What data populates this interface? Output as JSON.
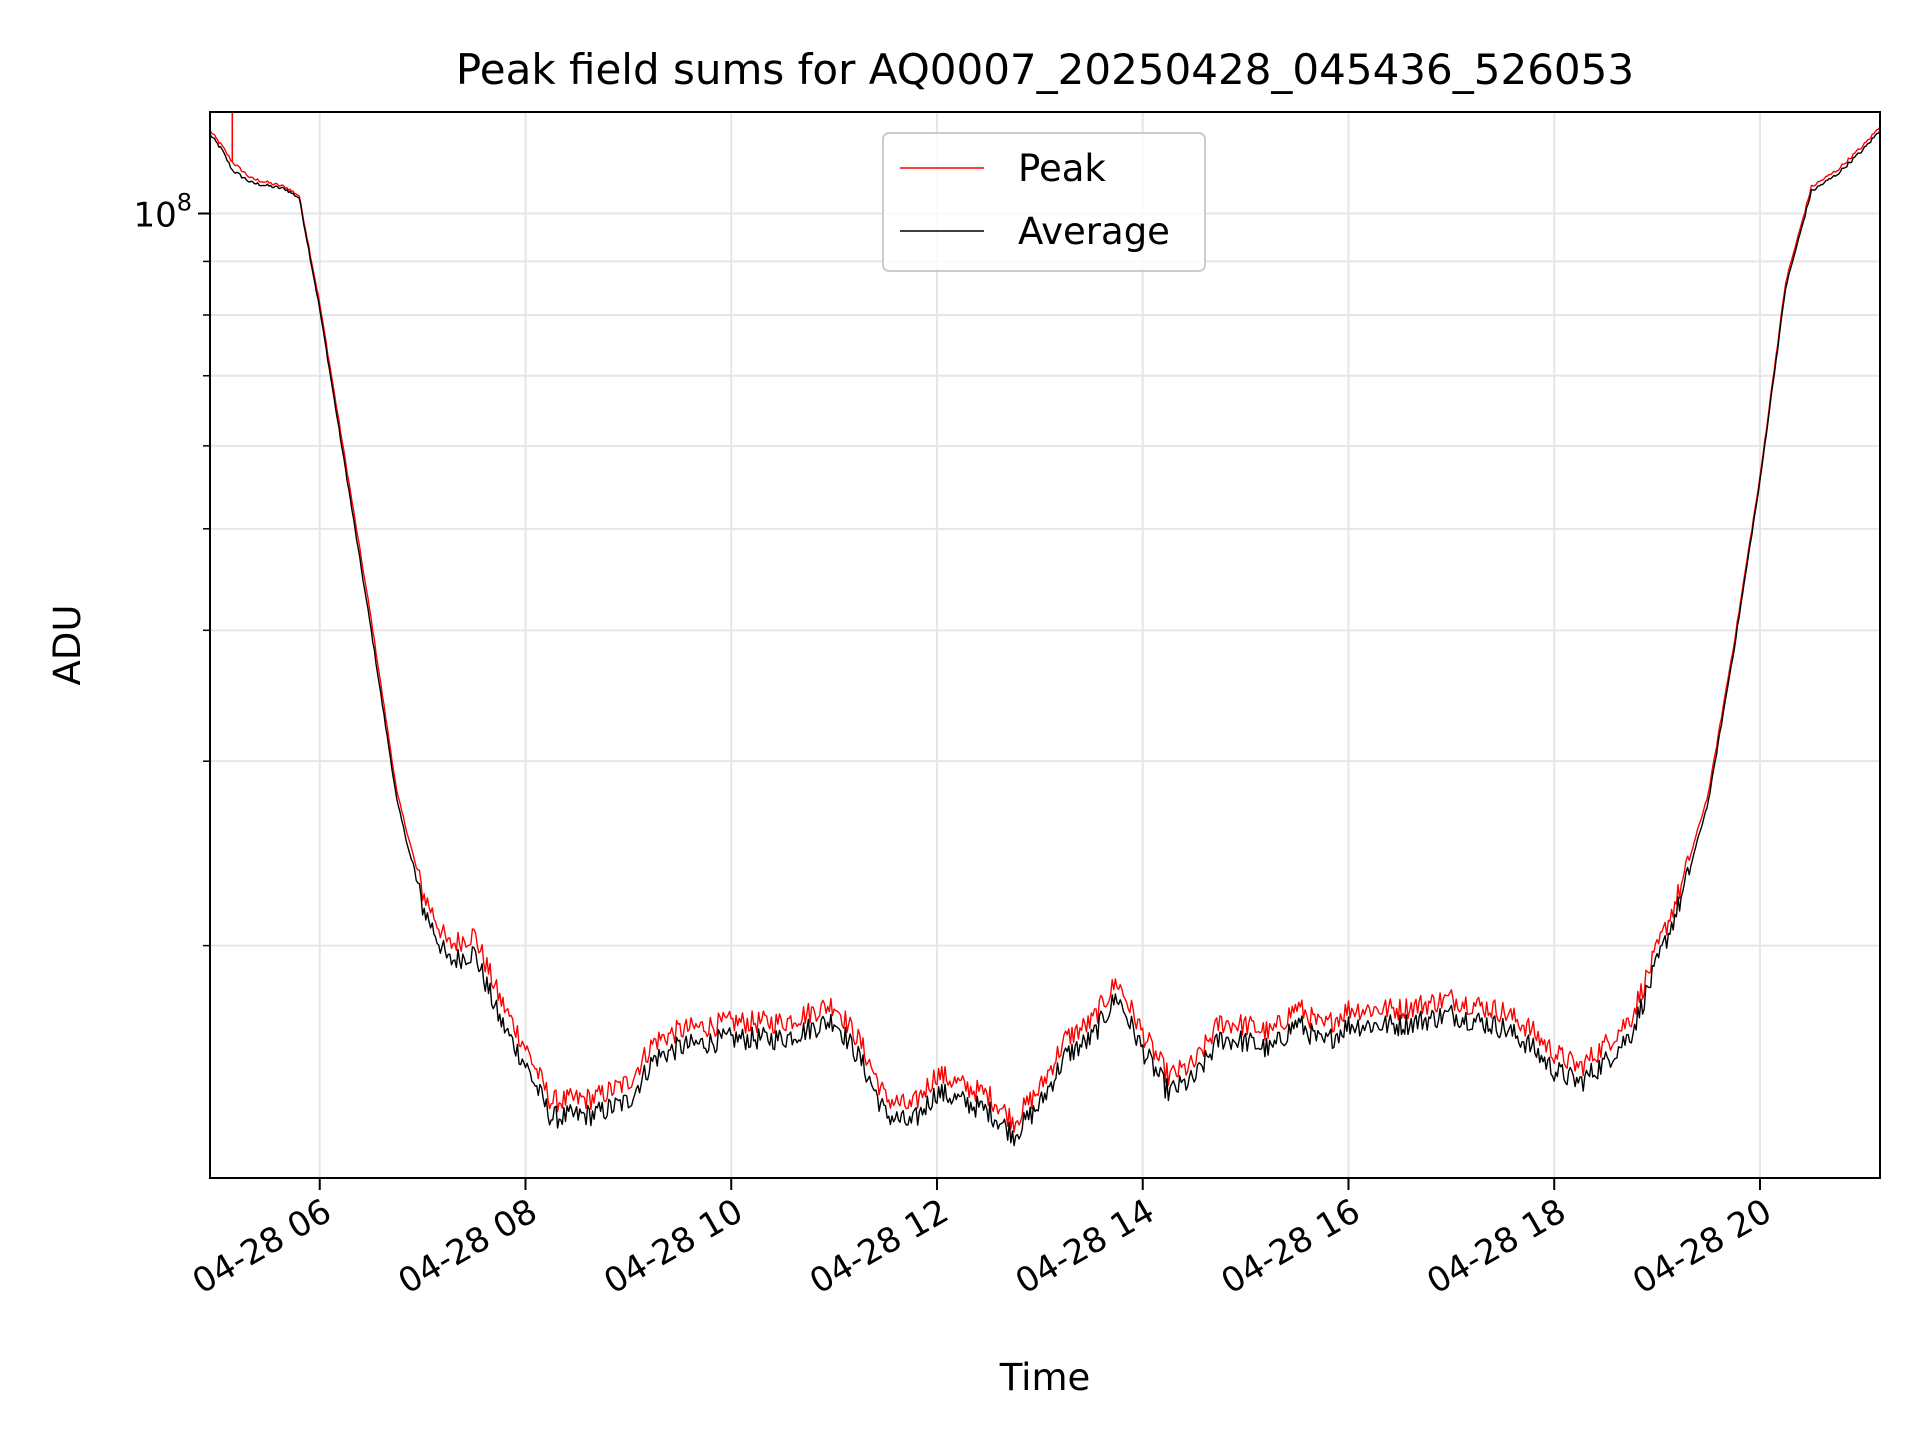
{
  "chart_data": {
    "type": "line",
    "title": "Peak field sums for AQ0007_20250428_045436_526053",
    "xlabel": "Time",
    "ylabel": "ADU",
    "y_scale": "log",
    "ylim": [
      12000000,
      125000000
    ],
    "xlim": [
      "2025-04-28 04:56",
      "2025-04-28 21:10"
    ],
    "grid": true,
    "legend": "upper center",
    "x_ticks": [
      {
        "t": "2025-04-28 06:00",
        "label": "04-28 06"
      },
      {
        "t": "2025-04-28 08:00",
        "label": "04-28 08"
      },
      {
        "t": "2025-04-28 10:00",
        "label": "04-28 10"
      },
      {
        "t": "2025-04-28 12:00",
        "label": "04-28 12"
      },
      {
        "t": "2025-04-28 14:00",
        "label": "04-28 14"
      },
      {
        "t": "2025-04-28 16:00",
        "label": "04-28 16"
      },
      {
        "t": "2025-04-28 18:00",
        "label": "04-28 18"
      },
      {
        "t": "2025-04-28 20:00",
        "label": "04-28 20"
      }
    ],
    "y_ticks": [
      {
        "value": 100000000,
        "label_base": "10",
        "label_exp": "8"
      }
    ],
    "series": [
      {
        "name": "Peak",
        "color": "#ff0000",
        "values": [
          {
            "t": "2025-04-28 04:56",
            "y": 120000000
          },
          {
            "t": "2025-04-28 05:03",
            "y": 116000000
          },
          {
            "t": "2025-04-28 05:09",
            "y": 112000000
          },
          {
            "t": "2025-04-28 05:20",
            "y": 108000000
          },
          {
            "t": "2025-04-28 05:40",
            "y": 106000000
          },
          {
            "t": "2025-04-28 05:48",
            "y": 104000000
          },
          {
            "t": "2025-04-28 06:00",
            "y": 82000000
          },
          {
            "t": "2025-04-28 06:15",
            "y": 58000000
          },
          {
            "t": "2025-04-28 06:30",
            "y": 41000000
          },
          {
            "t": "2025-04-28 06:45",
            "y": 28000000
          },
          {
            "t": "2025-04-28 07:00",
            "y": 22500000
          },
          {
            "t": "2025-04-28 07:15",
            "y": 20000000
          },
          {
            "t": "2025-04-28 07:30",
            "y": 20500000
          },
          {
            "t": "2025-04-28 07:45",
            "y": 17800000
          },
          {
            "t": "2025-04-28 08:00",
            "y": 16000000
          },
          {
            "t": "2025-04-28 08:15",
            "y": 14200000
          },
          {
            "t": "2025-04-28 08:40",
            "y": 14300000
          },
          {
            "t": "2025-04-28 09:00",
            "y": 14800000
          },
          {
            "t": "2025-04-28 09:15",
            "y": 16200000
          },
          {
            "t": "2025-04-28 09:30",
            "y": 16600000
          },
          {
            "t": "2025-04-28 10:00",
            "y": 16900000
          },
          {
            "t": "2025-04-28 10:30",
            "y": 16900000
          },
          {
            "t": "2025-04-28 11:00",
            "y": 17600000
          },
          {
            "t": "2025-04-28 11:15",
            "y": 16200000
          },
          {
            "t": "2025-04-28 11:30",
            "y": 14300000
          },
          {
            "t": "2025-04-28 11:45",
            "y": 14000000
          },
          {
            "t": "2025-04-28 12:00",
            "y": 15100000
          },
          {
            "t": "2025-04-28 12:15",
            "y": 14700000
          },
          {
            "t": "2025-04-28 12:30",
            "y": 14400000
          },
          {
            "t": "2025-04-28 12:45",
            "y": 13600000
          },
          {
            "t": "2025-04-28 13:00",
            "y": 14600000
          },
          {
            "t": "2025-04-28 13:15",
            "y": 16300000
          },
          {
            "t": "2025-04-28 13:30",
            "y": 16900000
          },
          {
            "t": "2025-04-28 13:45",
            "y": 18500000
          },
          {
            "t": "2025-04-28 14:00",
            "y": 16500000
          },
          {
            "t": "2025-04-28 14:15",
            "y": 15000000
          },
          {
            "t": "2025-04-28 14:30",
            "y": 15400000
          },
          {
            "t": "2025-04-28 14:45",
            "y": 16900000
          },
          {
            "t": "2025-04-28 15:00",
            "y": 16800000
          },
          {
            "t": "2025-04-28 15:15",
            "y": 16500000
          },
          {
            "t": "2025-04-28 15:30",
            "y": 17500000
          },
          {
            "t": "2025-04-28 15:45",
            "y": 16700000
          },
          {
            "t": "2025-04-28 16:00",
            "y": 17400000
          },
          {
            "t": "2025-04-28 16:30",
            "y": 17400000
          },
          {
            "t": "2025-04-28 17:00",
            "y": 17800000
          },
          {
            "t": "2025-04-28 17:30",
            "y": 17300000
          },
          {
            "t": "2025-04-28 17:45",
            "y": 16700000
          },
          {
            "t": "2025-04-28 18:00",
            "y": 15800000
          },
          {
            "t": "2025-04-28 18:15",
            "y": 15300000
          },
          {
            "t": "2025-04-28 18:30",
            "y": 16100000
          },
          {
            "t": "2025-04-28 18:45",
            "y": 17100000
          },
          {
            "t": "2025-04-28 19:00",
            "y": 19800000
          },
          {
            "t": "2025-04-28 19:15",
            "y": 23000000
          },
          {
            "t": "2025-04-28 19:30",
            "y": 28000000
          },
          {
            "t": "2025-04-28 19:45",
            "y": 39000000
          },
          {
            "t": "2025-04-28 20:00",
            "y": 56000000
          },
          {
            "t": "2025-04-28 20:15",
            "y": 86000000
          },
          {
            "t": "2025-04-28 20:30",
            "y": 106000000
          },
          {
            "t": "2025-04-28 20:45",
            "y": 110000000
          },
          {
            "t": "2025-04-28 21:00",
            "y": 116000000
          },
          {
            "t": "2025-04-28 21:10",
            "y": 121000000
          }
        ]
      },
      {
        "name": "Average",
        "color": "#000000",
        "values": [
          {
            "t": "2025-04-28 04:56",
            "y": 119000000
          },
          {
            "t": "2025-04-28 05:03",
            "y": 115000000
          },
          {
            "t": "2025-04-28 05:09",
            "y": 110000000
          },
          {
            "t": "2025-04-28 05:20",
            "y": 107000000
          },
          {
            "t": "2025-04-28 05:40",
            "y": 105500000
          },
          {
            "t": "2025-04-28 05:48",
            "y": 103500000
          },
          {
            "t": "2025-04-28 06:00",
            "y": 81000000
          },
          {
            "t": "2025-04-28 06:15",
            "y": 57000000
          },
          {
            "t": "2025-04-28 06:30",
            "y": 40000000
          },
          {
            "t": "2025-04-28 06:45",
            "y": 27500000
          },
          {
            "t": "2025-04-28 07:00",
            "y": 21800000
          },
          {
            "t": "2025-04-28 07:15",
            "y": 19300000
          },
          {
            "t": "2025-04-28 07:30",
            "y": 19700000
          },
          {
            "t": "2025-04-28 07:45",
            "y": 17000000
          },
          {
            "t": "2025-04-28 08:00",
            "y": 15400000
          },
          {
            "t": "2025-04-28 08:15",
            "y": 13700000
          },
          {
            "t": "2025-04-28 08:40",
            "y": 13800000
          },
          {
            "t": "2025-04-28 09:00",
            "y": 14200000
          },
          {
            "t": "2025-04-28 09:15",
            "y": 15600000
          },
          {
            "t": "2025-04-28 09:30",
            "y": 16000000
          },
          {
            "t": "2025-04-28 10:00",
            "y": 16300000
          },
          {
            "t": "2025-04-28 10:30",
            "y": 16300000
          },
          {
            "t": "2025-04-28 11:00",
            "y": 17000000
          },
          {
            "t": "2025-04-28 11:15",
            "y": 15600000
          },
          {
            "t": "2025-04-28 11:30",
            "y": 13800000
          },
          {
            "t": "2025-04-28 11:45",
            "y": 13500000
          },
          {
            "t": "2025-04-28 12:00",
            "y": 14500000
          },
          {
            "t": "2025-04-28 12:15",
            "y": 14200000
          },
          {
            "t": "2025-04-28 12:30",
            "y": 13900000
          },
          {
            "t": "2025-04-28 12:45",
            "y": 13200000
          },
          {
            "t": "2025-04-28 13:00",
            "y": 14100000
          },
          {
            "t": "2025-04-28 13:15",
            "y": 15700000
          },
          {
            "t": "2025-04-28 13:30",
            "y": 16300000
          },
          {
            "t": "2025-04-28 13:45",
            "y": 17900000
          },
          {
            "t": "2025-04-28 14:00",
            "y": 15900000
          },
          {
            "t": "2025-04-28 14:15",
            "y": 14500000
          },
          {
            "t": "2025-04-28 14:30",
            "y": 14900000
          },
          {
            "t": "2025-04-28 14:45",
            "y": 16300000
          },
          {
            "t": "2025-04-28 15:00",
            "y": 16200000
          },
          {
            "t": "2025-04-28 15:15",
            "y": 15900000
          },
          {
            "t": "2025-04-28 15:30",
            "y": 16900000
          },
          {
            "t": "2025-04-28 15:45",
            "y": 16100000
          },
          {
            "t": "2025-04-28 16:00",
            "y": 16800000
          },
          {
            "t": "2025-04-28 16:30",
            "y": 16800000
          },
          {
            "t": "2025-04-28 17:00",
            "y": 17200000
          },
          {
            "t": "2025-04-28 17:30",
            "y": 16700000
          },
          {
            "t": "2025-04-28 17:45",
            "y": 16100000
          },
          {
            "t": "2025-04-28 18:00",
            "y": 15200000
          },
          {
            "t": "2025-04-28 18:15",
            "y": 14800000
          },
          {
            "t": "2025-04-28 18:30",
            "y": 15500000
          },
          {
            "t": "2025-04-28 18:45",
            "y": 16500000
          },
          {
            "t": "2025-04-28 19:00",
            "y": 19200000
          },
          {
            "t": "2025-04-28 19:15",
            "y": 22400000
          },
          {
            "t": "2025-04-28 19:30",
            "y": 27500000
          },
          {
            "t": "2025-04-28 19:45",
            "y": 38500000
          },
          {
            "t": "2025-04-28 20:00",
            "y": 55500000
          },
          {
            "t": "2025-04-28 20:15",
            "y": 85000000
          },
          {
            "t": "2025-04-28 20:30",
            "y": 105000000
          },
          {
            "t": "2025-04-28 20:45",
            "y": 109000000
          },
          {
            "t": "2025-04-28 21:00",
            "y": 115000000
          },
          {
            "t": "2025-04-28 21:10",
            "y": 120000000
          }
        ]
      }
    ],
    "annotations": [
      {
        "series": "Peak",
        "t": "2025-04-28 05:09",
        "y_from": 112000000,
        "y_to": 125000000,
        "note": "spike"
      }
    ]
  }
}
